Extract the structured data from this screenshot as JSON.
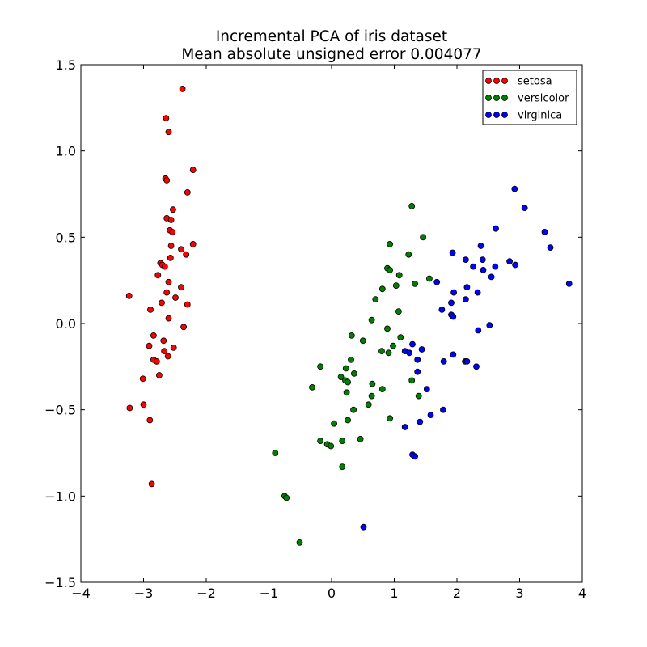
{
  "chart_data": {
    "type": "scatter",
    "title_lines": [
      "Incremental PCA of iris dataset",
      "Mean absolute unsigned error 0.004077"
    ],
    "xlabel": "",
    "ylabel": "",
    "xlim": [
      -4,
      4
    ],
    "ylim": [
      -1.5,
      1.5
    ],
    "xticks": [
      -4,
      -3,
      -2,
      -1,
      0,
      1,
      2,
      3,
      4
    ],
    "yticks": [
      -1.5,
      -1.0,
      -0.5,
      0.0,
      0.5,
      1.0,
      1.5
    ],
    "xtick_labels": [
      "−4",
      "−3",
      "−2",
      "−1",
      "0",
      "1",
      "2",
      "3",
      "4"
    ],
    "ytick_labels": [
      "−1.5",
      "−1.0",
      "−0.5",
      "0.0",
      "0.5",
      "1.0",
      "1.5"
    ],
    "grid": false,
    "legend_position": "top-right",
    "series": [
      {
        "name": "setosa",
        "color": "#ff0000",
        "points": [
          [
            -2.38,
            1.36
          ],
          [
            -2.64,
            1.19
          ],
          [
            -2.6,
            1.11
          ],
          [
            -2.21,
            0.89
          ],
          [
            -2.65,
            0.84
          ],
          [
            -2.63,
            0.83
          ],
          [
            -2.3,
            0.76
          ],
          [
            -2.53,
            0.66
          ],
          [
            -2.63,
            0.61
          ],
          [
            -2.56,
            0.6
          ],
          [
            -2.58,
            0.54
          ],
          [
            -2.54,
            0.53
          ],
          [
            -2.56,
            0.45
          ],
          [
            -2.21,
            0.46
          ],
          [
            -2.4,
            0.43
          ],
          [
            -2.32,
            0.4
          ],
          [
            -2.57,
            0.38
          ],
          [
            -2.73,
            0.35
          ],
          [
            -2.7,
            0.34
          ],
          [
            -2.66,
            0.33
          ],
          [
            -2.77,
            0.28
          ],
          [
            -2.6,
            0.24
          ],
          [
            -2.4,
            0.21
          ],
          [
            -2.63,
            0.18
          ],
          [
            -2.49,
            0.15
          ],
          [
            -3.23,
            0.16
          ],
          [
            -2.71,
            0.12
          ],
          [
            -2.3,
            0.11
          ],
          [
            -2.89,
            0.08
          ],
          [
            -2.6,
            0.03
          ],
          [
            -2.36,
            -0.02
          ],
          [
            -2.84,
            -0.07
          ],
          [
            -2.68,
            -0.1
          ],
          [
            -2.91,
            -0.13
          ],
          [
            -2.52,
            -0.14
          ],
          [
            -2.67,
            -0.16
          ],
          [
            -2.61,
            -0.19
          ],
          [
            -2.84,
            -0.21
          ],
          [
            -2.79,
            -0.22
          ],
          [
            -3.01,
            -0.32
          ],
          [
            -2.75,
            -0.3
          ],
          [
            -3.0,
            -0.47
          ],
          [
            -3.22,
            -0.49
          ],
          [
            -2.9,
            -0.56
          ],
          [
            -2.87,
            -0.93
          ]
        ]
      },
      {
        "name": "versicolor",
        "color": "#007f00",
        "points": [
          [
            1.28,
            0.68
          ],
          [
            1.46,
            0.5
          ],
          [
            0.93,
            0.46
          ],
          [
            1.23,
            0.4
          ],
          [
            0.89,
            0.32
          ],
          [
            0.93,
            0.31
          ],
          [
            1.08,
            0.28
          ],
          [
            1.56,
            0.26
          ],
          [
            1.33,
            0.23
          ],
          [
            1.03,
            0.22
          ],
          [
            0.81,
            0.2
          ],
          [
            0.7,
            0.14
          ],
          [
            1.07,
            0.07
          ],
          [
            0.64,
            0.02
          ],
          [
            0.89,
            -0.03
          ],
          [
            0.32,
            -0.07
          ],
          [
            1.1,
            -0.08
          ],
          [
            0.5,
            -0.1
          ],
          [
            0.98,
            -0.13
          ],
          [
            0.8,
            -0.16
          ],
          [
            0.91,
            -0.17
          ],
          [
            0.31,
            -0.21
          ],
          [
            -0.18,
            -0.25
          ],
          [
            0.23,
            -0.26
          ],
          [
            0.36,
            -0.29
          ],
          [
            0.15,
            -0.31
          ],
          [
            0.22,
            -0.33
          ],
          [
            1.28,
            -0.33
          ],
          [
            0.26,
            -0.34
          ],
          [
            0.65,
            -0.35
          ],
          [
            -0.31,
            -0.37
          ],
          [
            0.81,
            -0.38
          ],
          [
            0.24,
            -0.4
          ],
          [
            0.64,
            -0.42
          ],
          [
            1.39,
            -0.42
          ],
          [
            0.59,
            -0.47
          ],
          [
            0.35,
            -0.5
          ],
          [
            0.93,
            -0.55
          ],
          [
            0.26,
            -0.56
          ],
          [
            0.04,
            -0.58
          ],
          [
            0.46,
            -0.67
          ],
          [
            -0.18,
            -0.68
          ],
          [
            0.17,
            -0.68
          ],
          [
            -0.07,
            -0.7
          ],
          [
            -0.01,
            -0.71
          ],
          [
            -0.9,
            -0.75
          ],
          [
            0.17,
            -0.83
          ],
          [
            -0.75,
            -1.0
          ],
          [
            -0.72,
            -1.01
          ],
          [
            -0.51,
            -1.27
          ]
        ]
      },
      {
        "name": "virginica",
        "color": "#0000ff",
        "points": [
          [
            2.92,
            0.78
          ],
          [
            3.08,
            0.67
          ],
          [
            2.62,
            0.55
          ],
          [
            3.4,
            0.53
          ],
          [
            2.38,
            0.45
          ],
          [
            3.49,
            0.44
          ],
          [
            1.93,
            0.41
          ],
          [
            2.41,
            0.37
          ],
          [
            2.14,
            0.37
          ],
          [
            2.84,
            0.36
          ],
          [
            2.93,
            0.34
          ],
          [
            2.26,
            0.33
          ],
          [
            2.61,
            0.33
          ],
          [
            2.42,
            0.31
          ],
          [
            2.55,
            0.27
          ],
          [
            1.68,
            0.24
          ],
          [
            3.79,
            0.23
          ],
          [
            2.16,
            0.21
          ],
          [
            1.95,
            0.18
          ],
          [
            2.33,
            0.18
          ],
          [
            2.14,
            0.14
          ],
          [
            1.91,
            0.12
          ],
          [
            1.76,
            0.08
          ],
          [
            1.91,
            0.05
          ],
          [
            1.94,
            0.04
          ],
          [
            2.52,
            -0.01
          ],
          [
            2.34,
            -0.04
          ],
          [
            1.29,
            -0.12
          ],
          [
            1.44,
            -0.15
          ],
          [
            1.17,
            -0.16
          ],
          [
            1.24,
            -0.17
          ],
          [
            1.94,
            -0.18
          ],
          [
            1.79,
            -0.22
          ],
          [
            2.13,
            -0.22
          ],
          [
            2.16,
            -0.22
          ],
          [
            1.37,
            -0.21
          ],
          [
            2.31,
            -0.25
          ],
          [
            1.37,
            -0.28
          ],
          [
            1.52,
            -0.38
          ],
          [
            1.78,
            -0.5
          ],
          [
            1.58,
            -0.53
          ],
          [
            1.41,
            -0.57
          ],
          [
            1.17,
            -0.6
          ],
          [
            1.29,
            -0.76
          ],
          [
            1.33,
            -0.77
          ],
          [
            0.51,
            -1.18
          ]
        ]
      }
    ]
  }
}
